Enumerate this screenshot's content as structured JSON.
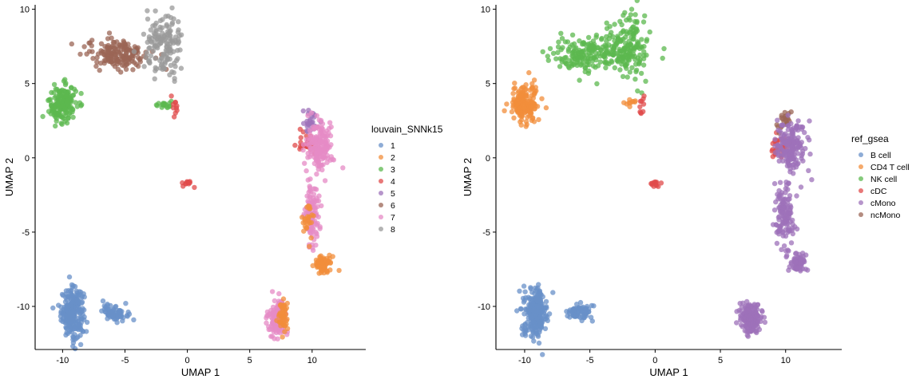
{
  "chart_data": [
    {
      "type": "scatter",
      "xlabel": "UMAP 1",
      "ylabel": "UMAP 2",
      "xlim": [
        -12.2,
        14.3
      ],
      "ylim": [
        -12.9,
        10.3
      ],
      "xticks": [
        -10,
        -5,
        0,
        5,
        10
      ],
      "yticks": [
        -10,
        -5,
        0,
        5,
        10
      ],
      "xtick_labels": [
        "-10",
        "-5",
        "0",
        "5",
        "10"
      ],
      "ytick_labels": [
        "-10",
        "-5",
        "0",
        "5",
        "10"
      ],
      "grid": false,
      "legend_position": "right",
      "legend_title": "louvain_SNNk15",
      "groups": [
        {
          "name": "1",
          "color": "#6890C8"
        },
        {
          "name": "2",
          "color": "#F28E3B"
        },
        {
          "name": "3",
          "color": "#5CB84F"
        },
        {
          "name": "4",
          "color": "#E04B4B"
        },
        {
          "name": "5",
          "color": "#9E72BA"
        },
        {
          "name": "6",
          "color": "#9B6655"
        },
        {
          "name": "7",
          "color": "#E58BC6"
        },
        {
          "name": "8",
          "color": "#999999"
        }
      ],
      "clusters": [
        {
          "group": "1",
          "cx": -9.2,
          "cy": -10.4,
          "sx": 0.45,
          "sy": 0.8,
          "n": 260
        },
        {
          "group": "1",
          "cx": -5.8,
          "cy": -10.4,
          "sx": 0.5,
          "sy": 0.28,
          "n": 70
        },
        {
          "group": "3",
          "cx": -10.0,
          "cy": 3.6,
          "sx": 0.55,
          "sy": 0.65,
          "n": 170
        },
        {
          "group": "3",
          "cx": -1.9,
          "cy": 3.6,
          "sx": 0.35,
          "sy": 0.15,
          "n": 18
        },
        {
          "group": "6",
          "cx": -5.5,
          "cy": 7.0,
          "sx": 1.3,
          "sy": 0.5,
          "n": 170
        },
        {
          "group": "8",
          "cx": -1.9,
          "cy": 7.5,
          "sx": 0.75,
          "sy": 1.1,
          "n": 150
        },
        {
          "group": "4",
          "cx": 0.0,
          "cy": -1.75,
          "sx": 0.25,
          "sy": 0.12,
          "n": 12
        },
        {
          "group": "4",
          "cx": -0.9,
          "cy": 3.5,
          "sx": 0.12,
          "sy": 0.25,
          "n": 10
        },
        {
          "group": "4",
          "cx": 9.6,
          "cy": 0.9,
          "sx": 0.35,
          "sy": 0.35,
          "n": 30
        },
        {
          "group": "5",
          "cx": 9.9,
          "cy": 2.4,
          "sx": 0.3,
          "sy": 0.4,
          "n": 25
        },
        {
          "group": "7",
          "cx": 10.6,
          "cy": 0.8,
          "sx": 0.55,
          "sy": 0.85,
          "n": 160
        },
        {
          "group": "7",
          "cx": 10.0,
          "cy": -3.6,
          "sx": 0.3,
          "sy": 1.1,
          "n": 110
        },
        {
          "group": "2",
          "cx": 9.6,
          "cy": -4.6,
          "sx": 0.3,
          "sy": 0.6,
          "n": 25
        },
        {
          "group": "2",
          "cx": 10.9,
          "cy": -7.1,
          "sx": 0.35,
          "sy": 0.35,
          "n": 60
        },
        {
          "group": "7",
          "cx": 7.2,
          "cy": -10.8,
          "sx": 0.35,
          "sy": 0.55,
          "n": 140
        },
        {
          "group": "2",
          "cx": 7.7,
          "cy": -10.6,
          "sx": 0.2,
          "sy": 0.45,
          "n": 45
        }
      ]
    },
    {
      "type": "scatter",
      "xlabel": "UMAP 1",
      "ylabel": "UMAP 2",
      "xlim": [
        -12.2,
        14.3
      ],
      "ylim": [
        -12.9,
        10.3
      ],
      "xticks": [
        -10,
        -5,
        0,
        5,
        10
      ],
      "yticks": [
        -10,
        -5,
        0,
        5,
        10
      ],
      "xtick_labels": [
        "-10",
        "-5",
        "0",
        "5",
        "10"
      ],
      "ytick_labels": [
        "-10",
        "-5",
        "0",
        "5",
        "10"
      ],
      "grid": false,
      "legend_position": "right",
      "legend_title": "ref_gsea",
      "groups": [
        {
          "name": "B cell",
          "color": "#6890C8"
        },
        {
          "name": "CD4 T cell",
          "color": "#F28E3B"
        },
        {
          "name": "NK cell",
          "color": "#5CB84F"
        },
        {
          "name": "cDC",
          "color": "#E04B4B"
        },
        {
          "name": "cMono",
          "color": "#9E72BA"
        },
        {
          "name": "ncMono",
          "color": "#9B6655"
        }
      ],
      "clusters": [
        {
          "group": "B cell",
          "cx": -9.2,
          "cy": -10.4,
          "sx": 0.45,
          "sy": 0.8,
          "n": 260
        },
        {
          "group": "B cell",
          "cx": -5.8,
          "cy": -10.4,
          "sx": 0.5,
          "sy": 0.28,
          "n": 70
        },
        {
          "group": "CD4 T cell",
          "cx": -10.0,
          "cy": 3.6,
          "sx": 0.55,
          "sy": 0.65,
          "n": 170
        },
        {
          "group": "CD4 T cell",
          "cx": -2.0,
          "cy": 3.7,
          "sx": 0.25,
          "sy": 0.15,
          "n": 10
        },
        {
          "group": "NK cell",
          "cx": -5.0,
          "cy": 7.0,
          "sx": 1.5,
          "sy": 0.55,
          "n": 200
        },
        {
          "group": "NK cell",
          "cx": -2.0,
          "cy": 7.6,
          "sx": 0.7,
          "sy": 1.1,
          "n": 150
        },
        {
          "group": "cDC",
          "cx": 0.0,
          "cy": -1.75,
          "sx": 0.25,
          "sy": 0.12,
          "n": 12
        },
        {
          "group": "cDC",
          "cx": -1.0,
          "cy": 3.5,
          "sx": 0.12,
          "sy": 0.25,
          "n": 10
        },
        {
          "group": "cDC",
          "cx": 9.5,
          "cy": 0.9,
          "sx": 0.35,
          "sy": 0.35,
          "n": 30
        },
        {
          "group": "ncMono",
          "cx": 9.9,
          "cy": 2.5,
          "sx": 0.25,
          "sy": 0.35,
          "n": 22
        },
        {
          "group": "cMono",
          "cx": 10.5,
          "cy": 0.7,
          "sx": 0.6,
          "sy": 0.9,
          "n": 170
        },
        {
          "group": "cMono",
          "cx": 9.9,
          "cy": -3.8,
          "sx": 0.35,
          "sy": 1.2,
          "n": 130
        },
        {
          "group": "cMono",
          "cx": 10.9,
          "cy": -7.1,
          "sx": 0.35,
          "sy": 0.35,
          "n": 60
        },
        {
          "group": "cMono",
          "cx": 7.3,
          "cy": -10.8,
          "sx": 0.4,
          "sy": 0.55,
          "n": 180
        }
      ]
    }
  ]
}
